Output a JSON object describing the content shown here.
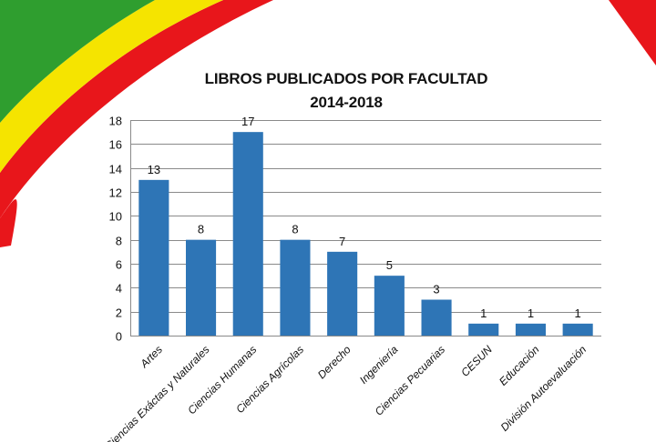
{
  "colors": {
    "bar": "#2E75B6",
    "grid": "#8a8a8a",
    "ribbon_green": "#2f9e2f",
    "ribbon_yellow": "#f5e400",
    "ribbon_red": "#e8161b"
  },
  "chart_data": {
    "type": "bar",
    "title": "LIBROS PUBLICADOS POR FACULTAD",
    "subtitle": "2014-2018",
    "categories": [
      "Artes",
      "Ciencias Exáctas y Naturales",
      "Ciencias Humanas",
      "Ciencias Agrícolas",
      "Derecho",
      "Ingeniería",
      "Ciencias Pecuarias",
      "CESUN",
      "Educación",
      "División Autoevaluación"
    ],
    "values": [
      13,
      8,
      17,
      8,
      7,
      5,
      3,
      1,
      1,
      1
    ],
    "ylim": [
      0,
      18
    ],
    "yticks": [
      0,
      2,
      4,
      6,
      8,
      10,
      12,
      14,
      16,
      18
    ],
    "grid": true,
    "data_labels": true,
    "legend": "none"
  }
}
